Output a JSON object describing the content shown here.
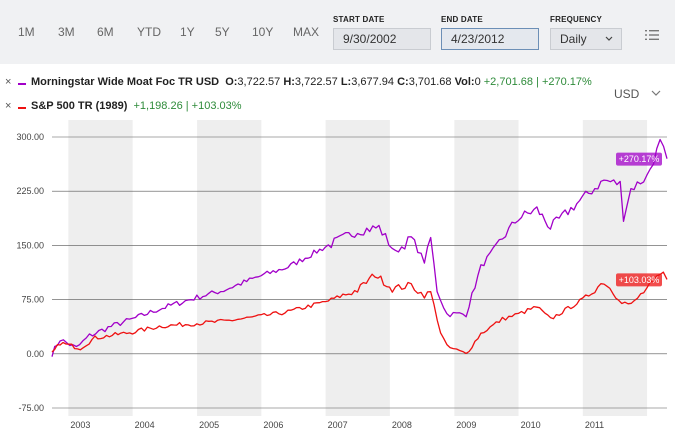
{
  "toolbar": {
    "periods": [
      "1M",
      "3M",
      "6M",
      "YTD",
      "1Y",
      "5Y",
      "10Y",
      "MAX"
    ],
    "start_date_label": "START DATE",
    "start_date_value": "9/30/2002",
    "end_date_label": "END DATE",
    "end_date_value": "4/23/2012",
    "frequency_label": "FREQUENCY",
    "frequency_value": "Daily",
    "menu_icon": "list-icon"
  },
  "legend": {
    "series1": {
      "remove": "×",
      "name": "Morningstar Wide Moat Foc TR USD",
      "o_label": "O:",
      "o_value": "3,722.57",
      "h_label": "H:",
      "h_value": "3,722.57",
      "l_label": "L:",
      "l_value": "3,677.94",
      "c_label": "C:",
      "c_value": "3,701.68",
      "vol_label": "Vol:",
      "vol_value": "0",
      "change": "+2,701.68 | +270.17%",
      "color": "#a100c8"
    },
    "series2": {
      "remove": "×",
      "name": "S&P 500 TR (1989)",
      "change": "+1,198.26 | +103.03%",
      "color": "#ee1111"
    },
    "change_color": "#2e8b3a"
  },
  "currency": {
    "label": "USD",
    "icon": "chevron-down-icon"
  },
  "chart_data": {
    "type": "line",
    "x_tick_labels": [
      "2003",
      "2004",
      "2005",
      "2006",
      "2007",
      "2008",
      "2009",
      "2010",
      "2011"
    ],
    "y_tick_labels": [
      "300.00",
      "225.00",
      "150.00",
      "75.00",
      "0.00",
      "-75.00"
    ],
    "ylim": [
      -75,
      300
    ],
    "xlim": [
      "2002-09-30",
      "2012-04-23"
    ],
    "shaded_alternate_years": true,
    "series": [
      {
        "name": "Morningstar Wide Moat Foc TR USD",
        "color": "#a100c8",
        "end_label": "+270.17%",
        "points": [
          [
            "2002-09-30",
            0
          ],
          [
            "2002-11-15",
            20
          ],
          [
            "2003-02-15",
            8
          ],
          [
            "2003-05-01",
            25
          ],
          [
            "2003-09-01",
            38
          ],
          [
            "2003-12-31",
            48
          ],
          [
            "2004-06-01",
            62
          ],
          [
            "2004-12-31",
            78
          ],
          [
            "2005-06-01",
            88
          ],
          [
            "2005-12-31",
            108
          ],
          [
            "2006-06-01",
            120
          ],
          [
            "2006-12-31",
            148
          ],
          [
            "2007-07-01",
            170
          ],
          [
            "2007-10-31",
            175
          ],
          [
            "2008-02-01",
            140
          ],
          [
            "2008-05-01",
            160
          ],
          [
            "2008-07-15",
            128
          ],
          [
            "2008-08-20",
            160
          ],
          [
            "2008-09-25",
            88
          ],
          [
            "2008-11-20",
            55
          ],
          [
            "2009-03-09",
            55
          ],
          [
            "2009-06-01",
            120
          ],
          [
            "2009-10-01",
            160
          ],
          [
            "2009-12-31",
            188
          ],
          [
            "2010-04-15",
            200
          ],
          [
            "2010-07-01",
            175
          ],
          [
            "2010-12-31",
            215
          ],
          [
            "2011-05-01",
            240
          ],
          [
            "2011-08-01",
            235
          ],
          [
            "2011-08-20",
            190
          ],
          [
            "2011-10-01",
            228
          ],
          [
            "2011-12-31",
            245
          ],
          [
            "2012-03-15",
            292
          ],
          [
            "2012-04-23",
            270
          ]
        ]
      },
      {
        "name": "S&P 500 TR (1989)",
        "color": "#ee1111",
        "end_label": "+103.03%",
        "points": [
          [
            "2002-09-30",
            0
          ],
          [
            "2002-11-15",
            15
          ],
          [
            "2003-03-10",
            8
          ],
          [
            "2003-06-01",
            22
          ],
          [
            "2003-12-31",
            30
          ],
          [
            "2004-06-01",
            38
          ],
          [
            "2004-12-31",
            42
          ],
          [
            "2005-06-01",
            45
          ],
          [
            "2005-12-31",
            52
          ],
          [
            "2006-06-01",
            58
          ],
          [
            "2006-12-31",
            72
          ],
          [
            "2007-07-01",
            88
          ],
          [
            "2007-10-09",
            110
          ],
          [
            "2008-01-15",
            90
          ],
          [
            "2008-05-01",
            95
          ],
          [
            "2008-07-15",
            80
          ],
          [
            "2008-08-20",
            85
          ],
          [
            "2008-10-15",
            30
          ],
          [
            "2008-11-20",
            10
          ],
          [
            "2009-03-09",
            0
          ],
          [
            "2009-06-01",
            28
          ],
          [
            "2009-10-01",
            48
          ],
          [
            "2009-12-31",
            55
          ],
          [
            "2010-04-15",
            65
          ],
          [
            "2010-07-01",
            48
          ],
          [
            "2010-12-31",
            75
          ],
          [
            "2011-05-01",
            100
          ],
          [
            "2011-08-10",
            72
          ],
          [
            "2011-10-03",
            68
          ],
          [
            "2011-12-31",
            90
          ],
          [
            "2012-04-02",
            112
          ],
          [
            "2012-04-23",
            103
          ]
        ]
      }
    ]
  }
}
